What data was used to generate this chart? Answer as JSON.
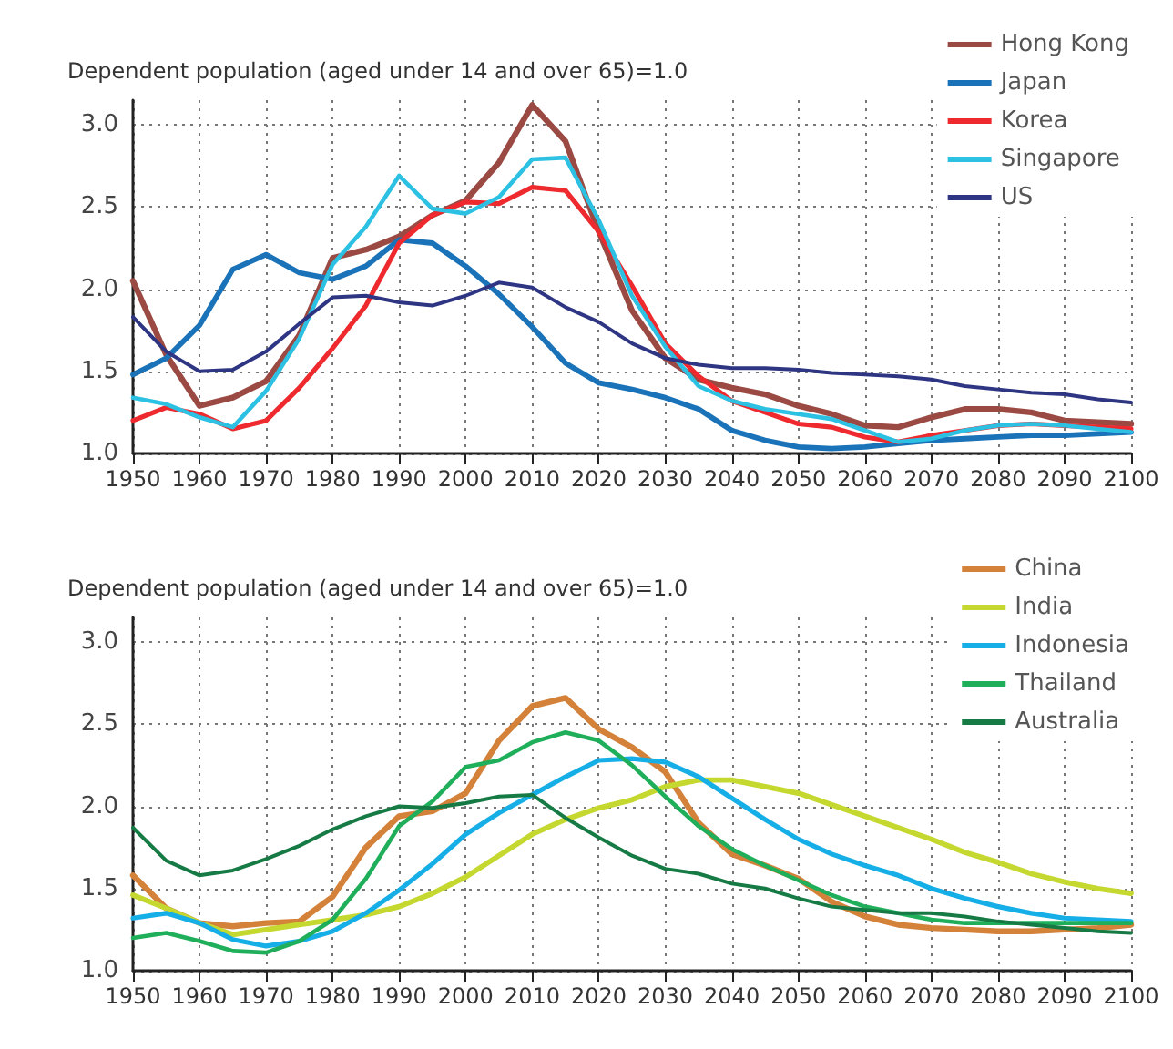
{
  "chart_data": [
    {
      "type": "line",
      "ylabel": "Dependent population (aged under 14 and over 65)=1.0",
      "x": [
        1950,
        1955,
        1960,
        1965,
        1970,
        1975,
        1980,
        1985,
        1990,
        1995,
        2000,
        2005,
        2010,
        2015,
        2020,
        2025,
        2030,
        2035,
        2040,
        2045,
        2050,
        2055,
        2060,
        2065,
        2070,
        2075,
        2080,
        2085,
        2090,
        2095,
        2100
      ],
      "series": [
        {
          "name": "Hong Kong",
          "color": "#9b4a43",
          "values": [
            2.05,
            1.6,
            1.29,
            1.34,
            1.44,
            1.72,
            2.19,
            2.24,
            2.32,
            2.45,
            2.54,
            2.77,
            3.12,
            2.9,
            2.35,
            1.87,
            1.58,
            1.45,
            1.4,
            1.36,
            1.29,
            1.24,
            1.17,
            1.16,
            1.22,
            1.27,
            1.27,
            1.25,
            1.2,
            1.19,
            1.18
          ]
        },
        {
          "name": "Japan",
          "color": "#1a72b8",
          "values": [
            1.48,
            1.58,
            1.78,
            2.12,
            2.21,
            2.1,
            2.06,
            2.14,
            2.3,
            2.28,
            2.14,
            1.97,
            1.77,
            1.55,
            1.43,
            1.39,
            1.34,
            1.27,
            1.14,
            1.08,
            1.04,
            1.03,
            1.04,
            1.06,
            1.08,
            1.09,
            1.1,
            1.11,
            1.11,
            1.12,
            1.13
          ]
        },
        {
          "name": "Korea",
          "color": "#ee2a2e",
          "values": [
            1.2,
            1.28,
            1.24,
            1.15,
            1.2,
            1.4,
            1.64,
            1.9,
            2.28,
            2.45,
            2.53,
            2.52,
            2.62,
            2.6,
            2.35,
            2.02,
            1.67,
            1.47,
            1.32,
            1.25,
            1.18,
            1.16,
            1.1,
            1.07,
            1.11,
            1.14,
            1.17,
            1.18,
            1.17,
            1.16,
            1.15
          ]
        },
        {
          "name": "Singapore",
          "color": "#2cc1e3",
          "values": [
            1.34,
            1.3,
            1.22,
            1.16,
            1.38,
            1.7,
            2.15,
            2.38,
            2.69,
            2.49,
            2.46,
            2.56,
            2.79,
            2.8,
            2.42,
            1.96,
            1.65,
            1.41,
            1.32,
            1.27,
            1.24,
            1.21,
            1.14,
            1.07,
            1.09,
            1.14,
            1.17,
            1.18,
            1.17,
            1.15,
            1.13
          ]
        },
        {
          "name": "US",
          "color": "#2e3583",
          "values": [
            1.83,
            1.62,
            1.5,
            1.51,
            1.62,
            1.79,
            1.95,
            1.96,
            1.92,
            1.9,
            1.96,
            2.04,
            2.01,
            1.89,
            1.8,
            1.67,
            1.58,
            1.54,
            1.52,
            1.52,
            1.51,
            1.49,
            1.48,
            1.47,
            1.45,
            1.41,
            1.39,
            1.37,
            1.36,
            1.33,
            1.31
          ]
        }
      ],
      "xlim": [
        1950,
        2100
      ],
      "xticks": [
        1950,
        1960,
        1970,
        1980,
        1990,
        2000,
        2010,
        2020,
        2030,
        2040,
        2050,
        2060,
        2070,
        2080,
        2090,
        2100
      ],
      "ylim": [
        1,
        3.15
      ],
      "yticks": [
        {
          "value": 1,
          "label": "1.0"
        },
        {
          "value": 1.5,
          "label": "1.5"
        },
        {
          "value": 2,
          "label": "2.0"
        },
        {
          "value": 2.5,
          "label": "2.5"
        },
        {
          "value": 3,
          "label": "3.0"
        }
      ],
      "grid": true,
      "legend": "top right",
      "marker": "none",
      "line_style": "solid"
    },
    {
      "type": "line",
      "ylabel": "Dependent population (aged under 14 and over 65)=1.0",
      "x": [
        1950,
        1955,
        1960,
        1965,
        1970,
        1975,
        1980,
        1985,
        1990,
        1995,
        2000,
        2005,
        2010,
        2015,
        2020,
        2025,
        2030,
        2035,
        2040,
        2045,
        2050,
        2055,
        2060,
        2065,
        2070,
        2075,
        2080,
        2085,
        2090,
        2095,
        2100
      ],
      "series": [
        {
          "name": "China",
          "color": "#d4813a",
          "values": [
            1.58,
            1.38,
            1.29,
            1.27,
            1.29,
            1.3,
            1.45,
            1.75,
            1.94,
            1.97,
            2.08,
            2.4,
            2.61,
            2.66,
            2.47,
            2.36,
            2.21,
            1.9,
            1.71,
            1.64,
            1.56,
            1.42,
            1.33,
            1.28,
            1.26,
            1.25,
            1.24,
            1.24,
            1.25,
            1.26,
            1.28
          ]
        },
        {
          "name": "India",
          "color": "#c5d830",
          "values": [
            1.46,
            1.38,
            1.29,
            1.22,
            1.25,
            1.28,
            1.31,
            1.34,
            1.39,
            1.47,
            1.57,
            1.7,
            1.83,
            1.92,
            1.99,
            2.04,
            2.12,
            2.16,
            2.16,
            2.12,
            2.08,
            2.01,
            1.94,
            1.87,
            1.8,
            1.72,
            1.66,
            1.59,
            1.54,
            1.5,
            1.47
          ]
        },
        {
          "name": "Indonesia",
          "color": "#16aee6",
          "values": [
            1.32,
            1.35,
            1.29,
            1.19,
            1.15,
            1.18,
            1.24,
            1.35,
            1.49,
            1.65,
            1.83,
            1.96,
            2.07,
            2.18,
            2.28,
            2.29,
            2.27,
            2.18,
            2.05,
            1.92,
            1.8,
            1.71,
            1.64,
            1.58,
            1.5,
            1.44,
            1.39,
            1.35,
            1.32,
            1.31,
            1.3
          ]
        },
        {
          "name": "Thailand",
          "color": "#1fae5a",
          "values": [
            1.2,
            1.23,
            1.18,
            1.12,
            1.11,
            1.18,
            1.31,
            1.56,
            1.88,
            2.03,
            2.24,
            2.28,
            2.39,
            2.45,
            2.4,
            2.25,
            2.06,
            1.88,
            1.74,
            1.64,
            1.55,
            1.46,
            1.39,
            1.35,
            1.31,
            1.29,
            1.29,
            1.29,
            1.29,
            1.29,
            1.29
          ]
        },
        {
          "name": "Australia",
          "color": "#167a45",
          "values": [
            1.87,
            1.67,
            1.58,
            1.61,
            1.68,
            1.76,
            1.86,
            1.94,
            2.0,
            1.99,
            2.02,
            2.06,
            2.07,
            1.93,
            1.81,
            1.7,
            1.62,
            1.59,
            1.53,
            1.5,
            1.44,
            1.39,
            1.37,
            1.35,
            1.35,
            1.33,
            1.3,
            1.28,
            1.26,
            1.24,
            1.23
          ]
        }
      ],
      "xlim": [
        1950,
        2100
      ],
      "xticks": [
        1950,
        1960,
        1970,
        1980,
        1990,
        2000,
        2010,
        2020,
        2030,
        2040,
        2050,
        2060,
        2070,
        2080,
        2090,
        2100
      ],
      "ylim": [
        1,
        3.15
      ],
      "yticks": [
        {
          "value": 1,
          "label": "1.0"
        },
        {
          "value": 1.5,
          "label": "1.5"
        },
        {
          "value": 2,
          "label": "2.0"
        },
        {
          "value": 2.5,
          "label": "2.5"
        },
        {
          "value": 3,
          "label": "3.0"
        }
      ],
      "grid": true,
      "legend": "top right",
      "marker": "none",
      "line_style": "solid"
    }
  ]
}
